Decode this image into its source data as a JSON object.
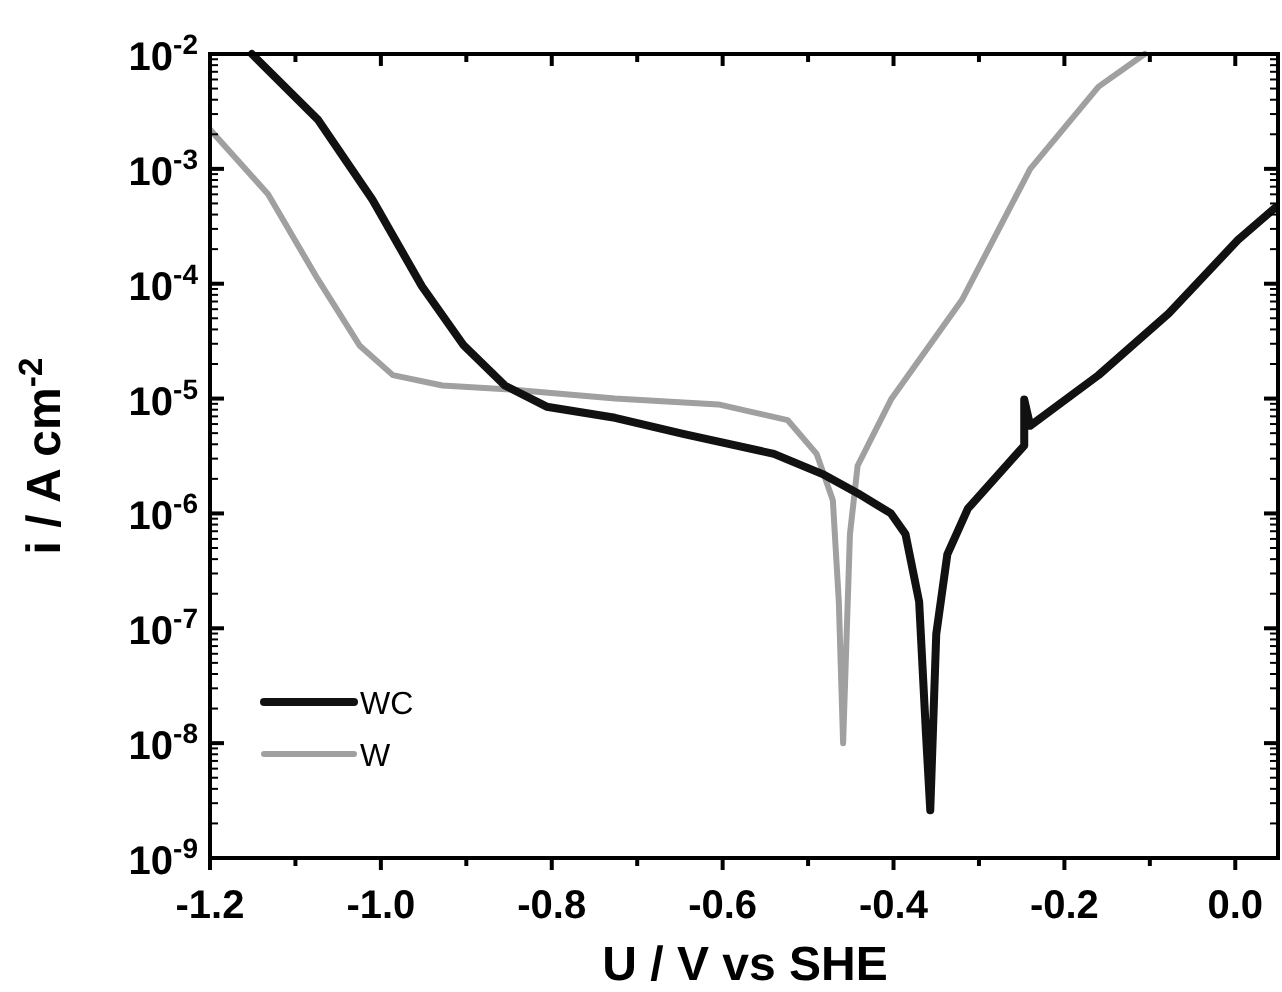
{
  "chart_data": {
    "type": "line",
    "xlabel": "U / V vs SHE",
    "ylabel": "i / A cm$^{-2}$",
    "log": "y",
    "grid": false,
    "legend": "bottom left",
    "marker": "none",
    "line_style": "solid",
    "xlim": [
      -1.2,
      0.05
    ],
    "xticks": [
      {
        "value": -1.2,
        "label": "-1.2"
      },
      {
        "value": -1.0,
        "label": "-1.0"
      },
      {
        "value": -0.8,
        "label": "-0.8"
      },
      {
        "value": -0.6,
        "label": "-0.6"
      },
      {
        "value": -0.4,
        "label": "-0.4"
      },
      {
        "value": -0.2,
        "label": "-0.2"
      },
      {
        "value": 0,
        "label": "0.0"
      }
    ],
    "ylim": [
      1e-09,
      0.01
    ],
    "yticks": [
      {
        "value": 1e-09,
        "label": "10$^{-9}$"
      },
      {
        "value": 1e-08,
        "label": "10$^{-8}$"
      },
      {
        "value": 1e-07,
        "label": "10$^{-7}$"
      },
      {
        "value": 1e-06,
        "label": "10$^{-6}$"
      },
      {
        "value": 1e-05,
        "label": "10$^{-5}$"
      },
      {
        "value": 0.0001,
        "label": "10$^{-4}$"
      },
      {
        "value": 0.001,
        "label": "10$^{-3}$"
      },
      {
        "value": 0.01,
        "label": "10$^{-2}$"
      }
    ],
    "series": [
      {
        "name": "WC",
        "color": "#111111",
        "x": [
          -1.151,
          -1.074,
          -1.01,
          -0.952,
          -0.903,
          -0.855,
          -0.806,
          -0.726,
          -0.645,
          -0.54,
          -0.483,
          -0.442,
          -0.403,
          -0.386,
          -0.37,
          -0.362,
          -0.357,
          -0.35,
          -0.337,
          -0.313,
          -0.247,
          -0.247,
          -0.24,
          -0.16,
          -0.078,
          0.003,
          0.047
        ],
        "values": [
          0.01,
          0.0027,
          0.00054,
          9.5e-05,
          2.9e-05,
          1.3e-05,
          8.5e-06,
          6.8e-06,
          4.9e-06,
          3.3e-06,
          2.2e-06,
          1.5e-06,
          1e-06,
          6.6e-07,
          1.7e-07,
          1.2e-08,
          2.6e-09,
          8.9e-08,
          4.4e-07,
          1.1e-06,
          3.9e-06,
          9.8e-06,
          5.8e-06,
          1.6e-05,
          5.5e-05,
          0.00024,
          0.00046
        ]
      },
      {
        "name": "W",
        "color": "#a0a0a0",
        "x": [
          -1.2,
          -1.132,
          -1.074,
          -1.025,
          -0.986,
          -0.928,
          -0.848,
          -0.726,
          -0.605,
          -0.524,
          -0.49,
          -0.471,
          -0.464,
          -0.459,
          -0.451,
          -0.442,
          -0.403,
          -0.32,
          -0.24,
          -0.16,
          -0.106
        ],
        "values": [
          0.0022,
          0.0006,
          0.00011,
          2.9e-05,
          1.6e-05,
          1.3e-05,
          1.2e-05,
          1e-05,
          8.9e-06,
          6.5e-06,
          3.3e-06,
          1.3e-06,
          1.7e-07,
          1e-08,
          6.6e-07,
          2.6e-06,
          9.8e-06,
          7.2e-05,
          0.001,
          0.0052,
          0.01
        ]
      }
    ]
  }
}
